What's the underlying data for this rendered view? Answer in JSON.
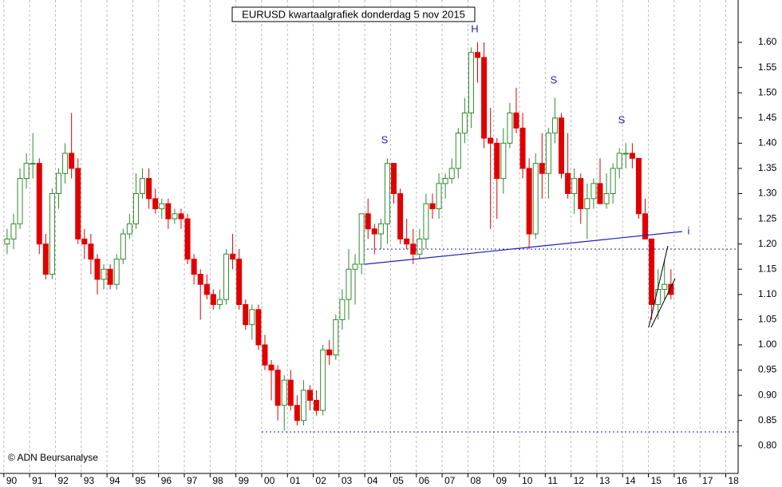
{
  "chart_data": {
    "type": "candlestick",
    "title": "EURUSD kwartaalgrafiek donderdag 5 nov 2015",
    "credit": "© ADN Beursanalyse",
    "annotations": [
      "H",
      "S",
      "S",
      "S",
      "i"
    ],
    "up_color": "#2e8b2e",
    "down_color": "#e00000",
    "xlim": [
      1989.85,
      2018.48
    ],
    "ylim": [
      0.745,
      1.684
    ],
    "grid": true,
    "xticks": [
      {
        "value": 1990,
        "label": "90"
      },
      {
        "value": 1991,
        "label": "91"
      },
      {
        "value": 1992,
        "label": "92"
      },
      {
        "value": 1993,
        "label": "93"
      },
      {
        "value": 1994,
        "label": "94"
      },
      {
        "value": 1995,
        "label": "95"
      },
      {
        "value": 1996,
        "label": "96"
      },
      {
        "value": 1997,
        "label": "97"
      },
      {
        "value": 1998,
        "label": "98"
      },
      {
        "value": 1999,
        "label": "99"
      },
      {
        "value": 2000,
        "label": "00"
      },
      {
        "value": 2001,
        "label": "01"
      },
      {
        "value": 2002,
        "label": "02"
      },
      {
        "value": 2003,
        "label": "03"
      },
      {
        "value": 2004,
        "label": "04"
      },
      {
        "value": 2005,
        "label": "05"
      },
      {
        "value": 2006,
        "label": "06"
      },
      {
        "value": 2007,
        "label": "07"
      },
      {
        "value": 2008,
        "label": "08"
      },
      {
        "value": 2009,
        "label": "09"
      },
      {
        "value": 2010,
        "label": "10"
      },
      {
        "value": 2011,
        "label": "11"
      },
      {
        "value": 2012,
        "label": "12"
      },
      {
        "value": 2013,
        "label": "13"
      },
      {
        "value": 2014,
        "label": "14"
      },
      {
        "value": 2015,
        "label": "15"
      },
      {
        "value": 2016,
        "label": "16"
      },
      {
        "value": 2017,
        "label": "17"
      },
      {
        "value": 2018,
        "label": "18"
      }
    ],
    "yticks": [
      {
        "value": 0.8,
        "label": "0.80"
      },
      {
        "value": 0.85,
        "label": "0.85"
      },
      {
        "value": 0.9,
        "label": "0.90"
      },
      {
        "value": 0.95,
        "label": "0.95"
      },
      {
        "value": 1.0,
        "label": "1.00"
      },
      {
        "value": 1.05,
        "label": "1.05"
      },
      {
        "value": 1.1,
        "label": "1.10"
      },
      {
        "value": 1.15,
        "label": "1.15"
      },
      {
        "value": 1.2,
        "label": "1.20"
      },
      {
        "value": 1.25,
        "label": "1.25"
      },
      {
        "value": 1.3,
        "label": "1.30"
      },
      {
        "value": 1.35,
        "label": "1.35"
      },
      {
        "value": 1.4,
        "label": "1.40"
      },
      {
        "value": 1.45,
        "label": "1.45"
      },
      {
        "value": 1.5,
        "label": "1.50"
      },
      {
        "value": 1.55,
        "label": "1.55"
      },
      {
        "value": 1.6,
        "label": "1.60"
      }
    ],
    "x": [
      1990.125,
      1990.375,
      1990.625,
      1990.875,
      1991.125,
      1991.375,
      1991.625,
      1991.875,
      1992.125,
      1992.375,
      1992.625,
      1992.875,
      1993.125,
      1993.375,
      1993.625,
      1993.875,
      1994.125,
      1994.375,
      1994.625,
      1994.875,
      1995.125,
      1995.375,
      1995.625,
      1995.875,
      1996.125,
      1996.375,
      1996.625,
      1996.875,
      1997.125,
      1997.375,
      1997.625,
      1997.875,
      1998.125,
      1998.375,
      1998.625,
      1998.875,
      1999.125,
      1999.375,
      1999.625,
      1999.875,
      2000.125,
      2000.375,
      2000.625,
      2000.875,
      2001.125,
      2001.375,
      2001.625,
      2001.875,
      2002.125,
      2002.375,
      2002.625,
      2002.875,
      2003.125,
      2003.375,
      2003.625,
      2003.875,
      2004.125,
      2004.375,
      2004.625,
      2004.875,
      2005.125,
      2005.375,
      2005.625,
      2005.875,
      2006.125,
      2006.375,
      2006.625,
      2006.875,
      2007.125,
      2007.375,
      2007.625,
      2007.875,
      2008.125,
      2008.375,
      2008.625,
      2008.875,
      2009.125,
      2009.375,
      2009.625,
      2009.875,
      2010.125,
      2010.375,
      2010.625,
      2010.875,
      2011.125,
      2011.375,
      2011.625,
      2011.875,
      2012.125,
      2012.375,
      2012.625,
      2012.875,
      2013.125,
      2013.375,
      2013.625,
      2013.875,
      2014.125,
      2014.375,
      2014.625,
      2014.875,
      2015.125,
      2015.375,
      2015.625,
      2015.875
    ],
    "open": [
      1.2,
      1.21,
      1.24,
      1.33,
      1.36,
      1.36,
      1.2,
      1.14,
      1.3,
      1.34,
      1.38,
      1.35,
      1.21,
      1.2,
      1.17,
      1.13,
      1.15,
      1.12,
      1.17,
      1.22,
      1.24,
      1.3,
      1.33,
      1.29,
      1.27,
      1.28,
      1.25,
      1.26,
      1.25,
      1.17,
      1.14,
      1.12,
      1.1,
      1.08,
      1.09,
      1.18,
      1.17,
      1.08,
      1.04,
      1.07,
      1.0,
      0.96,
      0.95,
      0.88,
      0.93,
      0.88,
      0.85,
      0.91,
      0.89,
      0.87,
      0.99,
      0.98,
      1.05,
      1.09,
      1.15,
      1.16,
      1.26,
      1.23,
      1.22,
      1.24,
      1.36,
      1.3,
      1.21,
      1.2,
      1.18,
      1.21,
      1.28,
      1.27,
      1.32,
      1.33,
      1.35,
      1.42,
      1.46,
      1.58,
      1.57,
      1.41,
      1.4,
      1.33,
      1.4,
      1.46,
      1.43,
      1.35,
      1.22,
      1.36,
      1.34,
      1.42,
      1.45,
      1.34,
      1.3,
      1.33,
      1.27,
      1.29,
      1.32,
      1.28,
      1.3,
      1.35,
      1.38,
      1.38,
      1.37,
      1.26,
      1.21,
      1.08,
      1.11,
      1.12
    ],
    "high": [
      1.23,
      1.26,
      1.35,
      1.38,
      1.42,
      1.37,
      1.22,
      1.31,
      1.35,
      1.4,
      1.46,
      1.37,
      1.23,
      1.22,
      1.18,
      1.16,
      1.16,
      1.18,
      1.23,
      1.26,
      1.34,
      1.35,
      1.35,
      1.31,
      1.29,
      1.29,
      1.27,
      1.27,
      1.26,
      1.18,
      1.15,
      1.14,
      1.11,
      1.11,
      1.19,
      1.22,
      1.19,
      1.09,
      1.08,
      1.08,
      1.02,
      0.97,
      0.96,
      0.94,
      0.95,
      0.9,
      0.93,
      0.92,
      0.91,
      1.0,
      1.01,
      1.06,
      1.11,
      1.19,
      1.18,
      1.26,
      1.29,
      1.24,
      1.25,
      1.37,
      1.36,
      1.31,
      1.25,
      1.23,
      1.23,
      1.3,
      1.3,
      1.34,
      1.34,
      1.37,
      1.43,
      1.49,
      1.59,
      1.6,
      1.6,
      1.47,
      1.41,
      1.43,
      1.48,
      1.51,
      1.46,
      1.37,
      1.38,
      1.42,
      1.43,
      1.49,
      1.46,
      1.42,
      1.35,
      1.34,
      1.32,
      1.33,
      1.37,
      1.34,
      1.36,
      1.39,
      1.4,
      1.4,
      1.37,
      1.29,
      1.21,
      1.15,
      1.17,
      1.15
    ],
    "low": [
      1.18,
      1.19,
      1.23,
      1.31,
      1.33,
      1.18,
      1.13,
      1.13,
      1.27,
      1.32,
      1.33,
      1.2,
      1.17,
      1.14,
      1.1,
      1.11,
      1.11,
      1.11,
      1.16,
      1.21,
      1.23,
      1.29,
      1.27,
      1.26,
      1.25,
      1.23,
      1.24,
      1.23,
      1.16,
      1.12,
      1.05,
      1.09,
      1.07,
      1.07,
      1.08,
      1.15,
      1.07,
      1.03,
      1.01,
      0.99,
      0.95,
      0.89,
      0.85,
      0.83,
      0.87,
      0.84,
      0.84,
      0.87,
      0.86,
      0.86,
      0.96,
      0.97,
      1.03,
      1.05,
      1.08,
      1.14,
      1.21,
      1.18,
      1.19,
      1.2,
      1.28,
      1.2,
      1.19,
      1.16,
      1.17,
      1.19,
      1.25,
      1.25,
      1.29,
      1.32,
      1.33,
      1.4,
      1.43,
      1.52,
      1.39,
      1.23,
      1.25,
      1.3,
      1.39,
      1.42,
      1.33,
      1.19,
      1.21,
      1.29,
      1.29,
      1.4,
      1.33,
      1.29,
      1.26,
      1.24,
      1.21,
      1.27,
      1.28,
      1.27,
      1.28,
      1.33,
      1.35,
      1.35,
      1.25,
      1.21,
      1.05,
      1.05,
      1.09,
      1.09
    ],
    "close": [
      1.21,
      1.24,
      1.33,
      1.36,
      1.36,
      1.2,
      1.14,
      1.3,
      1.34,
      1.38,
      1.35,
      1.21,
      1.2,
      1.17,
      1.13,
      1.15,
      1.12,
      1.17,
      1.22,
      1.24,
      1.3,
      1.33,
      1.29,
      1.27,
      1.28,
      1.25,
      1.26,
      1.25,
      1.17,
      1.14,
      1.12,
      1.1,
      1.08,
      1.09,
      1.18,
      1.17,
      1.08,
      1.04,
      1.07,
      1.0,
      0.96,
      0.95,
      0.88,
      0.93,
      0.88,
      0.85,
      0.91,
      0.89,
      0.87,
      0.99,
      0.98,
      1.05,
      1.09,
      1.15,
      1.16,
      1.26,
      1.23,
      1.22,
      1.24,
      1.36,
      1.3,
      1.21,
      1.2,
      1.18,
      1.21,
      1.28,
      1.27,
      1.32,
      1.33,
      1.35,
      1.42,
      1.46,
      1.58,
      1.57,
      1.41,
      1.4,
      1.33,
      1.4,
      1.46,
      1.43,
      1.35,
      1.22,
      1.36,
      1.34,
      1.42,
      1.45,
      1.34,
      1.3,
      1.33,
      1.27,
      1.29,
      1.32,
      1.28,
      1.3,
      1.35,
      1.38,
      1.38,
      1.37,
      1.26,
      1.21,
      1.08,
      1.11,
      1.12,
      1.1
    ]
  }
}
